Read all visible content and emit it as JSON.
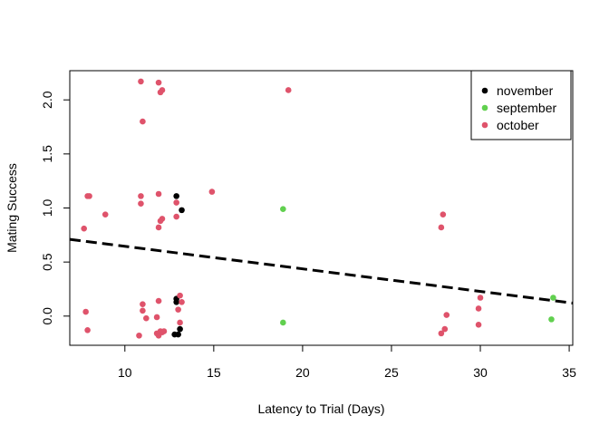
{
  "chart_data": {
    "type": "scatter",
    "title": "",
    "xlabel": "Latency to Trial (Days)",
    "ylabel": "Mating Success",
    "xlim": [
      6.9,
      35.2
    ],
    "ylim": [
      -0.27,
      2.27
    ],
    "x_ticks": [
      10,
      15,
      20,
      25,
      30,
      35
    ],
    "y_ticks": [
      0.0,
      0.5,
      1.0,
      1.5,
      2.0
    ],
    "x_tick_labels": [
      "10",
      "15",
      "20",
      "25",
      "30",
      "35"
    ],
    "y_tick_labels": [
      "0.0",
      "0.5",
      "1.0",
      "1.5",
      "2.0"
    ],
    "grid": false,
    "legend_position": "top-right",
    "series": [
      {
        "name": "november",
        "color": "#000000",
        "points": [
          [
            12.9,
            1.11
          ],
          [
            13.2,
            0.98
          ],
          [
            12.9,
            0.16
          ],
          [
            12.9,
            0.13
          ],
          [
            13.1,
            -0.12
          ],
          [
            12.8,
            -0.17
          ],
          [
            13.0,
            -0.17
          ]
        ]
      },
      {
        "name": "september",
        "color": "#61D04F",
        "points": [
          [
            18.9,
            0.99
          ],
          [
            18.9,
            -0.06
          ],
          [
            34.1,
            0.17
          ],
          [
            34.0,
            -0.03
          ]
        ]
      },
      {
        "name": "october",
        "color": "#DF536B",
        "points": [
          [
            10.9,
            2.17
          ],
          [
            11.9,
            2.16
          ],
          [
            12.1,
            2.09
          ],
          [
            12.0,
            2.07
          ],
          [
            11.0,
            1.8
          ],
          [
            19.2,
            2.09
          ],
          [
            14.9,
            1.15
          ],
          [
            11.9,
            1.13
          ],
          [
            7.9,
            1.11
          ],
          [
            8.0,
            1.11
          ],
          [
            10.9,
            1.11
          ],
          [
            10.9,
            1.04
          ],
          [
            12.9,
            1.05
          ],
          [
            8.9,
            0.94
          ],
          [
            12.1,
            0.9
          ],
          [
            12.0,
            0.88
          ],
          [
            12.9,
            0.92
          ],
          [
            7.7,
            0.81
          ],
          [
            11.9,
            0.82
          ],
          [
            27.9,
            0.94
          ],
          [
            27.8,
            0.82
          ],
          [
            13.1,
            0.19
          ],
          [
            13.2,
            0.13
          ],
          [
            11.0,
            0.11
          ],
          [
            11.9,
            0.14
          ],
          [
            11.0,
            0.05
          ],
          [
            13.0,
            0.06
          ],
          [
            7.8,
            0.04
          ],
          [
            11.8,
            -0.01
          ],
          [
            11.2,
            -0.02
          ],
          [
            13.1,
            -0.06
          ],
          [
            7.9,
            -0.13
          ],
          [
            12.0,
            -0.14
          ],
          [
            11.8,
            -0.16
          ],
          [
            12.1,
            -0.15
          ],
          [
            11.9,
            -0.18
          ],
          [
            12.2,
            -0.14
          ],
          [
            10.8,
            -0.18
          ],
          [
            28.1,
            0.01
          ],
          [
            28.0,
            -0.12
          ],
          [
            27.8,
            -0.16
          ],
          [
            30.0,
            0.17
          ],
          [
            29.9,
            0.07
          ],
          [
            29.9,
            -0.08
          ]
        ]
      }
    ],
    "trend_line": {
      "style": "dashed",
      "color": "#000000",
      "x": [
        6.9,
        35.2
      ],
      "y": [
        0.71,
        0.12
      ]
    }
  }
}
